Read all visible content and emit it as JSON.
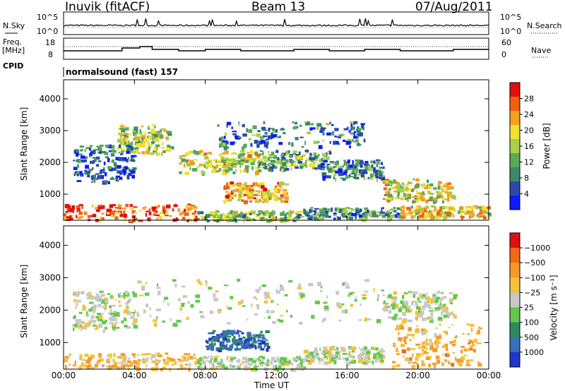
{
  "header": {
    "station": "Inuvik (fitACF)",
    "beam": "Beam 13",
    "date": "07/Aug/2011"
  },
  "strip": {
    "nsky_label": "N.Sky",
    "nsky_ticks": [
      "10^5",
      "10^0"
    ],
    "nsearch_label": "N.Search",
    "nsearch_ticks": [
      "10^5",
      "10^0"
    ],
    "freq_label": "Freq.",
    "freq_unit": "[MHz]",
    "freq_ticks": [
      "18",
      "8"
    ],
    "nave_label": "Nave",
    "nave_ticks": [
      "60",
      "0"
    ],
    "cpid_label": "CPID",
    "cpid_text": "normalsound (fast) 157"
  },
  "colors": {
    "power_scale": [
      "#0b1aff",
      "#2b4aa8",
      "#3a8a6a",
      "#5aa85a",
      "#a8d04a",
      "#f0e030",
      "#f5a020",
      "#f06010",
      "#e01010"
    ],
    "velocity_scale": [
      "#2036c8",
      "#3b6fb8",
      "#2e8a5e",
      "#62c84a",
      "#c8c8c8",
      "#f5c23a",
      "#f59a2a",
      "#f06818",
      "#e01010"
    ]
  },
  "chart_data": [
    {
      "type": "heatmap",
      "panel": "power",
      "xlabel": "",
      "ylabel": "Slant Range [km]",
      "x_ticks": [
        "00:00",
        "04:00",
        "08:00",
        "12:00",
        "16:00",
        "20:00",
        "00:00"
      ],
      "y_ticks": [
        "1000",
        "2000",
        "3000",
        "4000"
      ],
      "ylim": [
        180,
        4600
      ],
      "colorbar": {
        "label": "Power [dB]",
        "ticks": [
          "4",
          "8",
          "12",
          "16",
          "20",
          "24",
          "28"
        ],
        "range": [
          0,
          32
        ]
      },
      "regions": [
        {
          "t0": 0.0,
          "t1": 7.5,
          "r0": 200,
          "r1": 700,
          "v": 27
        },
        {
          "t0": 7.5,
          "t1": 13.5,
          "r0": 200,
          "r1": 500,
          "v": 14
        },
        {
          "t0": 13.5,
          "t1": 19.0,
          "r0": 250,
          "r1": 600,
          "v": 10
        },
        {
          "t0": 19.0,
          "t1": 24.0,
          "r0": 300,
          "r1": 650,
          "v": 20
        },
        {
          "t0": 9.0,
          "t1": 12.5,
          "r0": 800,
          "r1": 1400,
          "v": 22
        },
        {
          "t0": 6.5,
          "t1": 11.0,
          "r0": 1700,
          "r1": 2400,
          "v": 18
        },
        {
          "t0": 3.0,
          "t1": 6.0,
          "r0": 2300,
          "r1": 3200,
          "v": 16
        },
        {
          "t0": 11.0,
          "t1": 15.0,
          "r0": 1800,
          "r1": 2400,
          "v": 12
        },
        {
          "t0": 14.5,
          "t1": 18.0,
          "r0": 1500,
          "r1": 2100,
          "v": 9
        },
        {
          "t0": 18.0,
          "t1": 22.0,
          "r0": 800,
          "r1": 1500,
          "v": 18
        },
        {
          "t0": 8.5,
          "t1": 17.0,
          "r0": 2500,
          "r1": 3300,
          "v": 8
        },
        {
          "t0": 0.5,
          "t1": 4.0,
          "r0": 1400,
          "r1": 2600,
          "v": 6
        }
      ]
    },
    {
      "type": "heatmap",
      "panel": "velocity",
      "xlabel": "Time UT",
      "ylabel": "Slant Range [km]",
      "x_ticks": [
        "00:00",
        "04:00",
        "08:00",
        "12:00",
        "16:00",
        "20:00",
        "00:00"
      ],
      "y_ticks": [
        "1000",
        "2000",
        "3000",
        "4000"
      ],
      "ylim": [
        180,
        4600
      ],
      "colorbar": {
        "label": "Velocity [m s⁻¹]",
        "ticks": [
          "1000",
          "500",
          "100",
          "25",
          "−25",
          "−100",
          "−500",
          "−1000"
        ],
        "range": [
          -1200,
          1200
        ]
      },
      "regions": [
        {
          "t0": 0.0,
          "t1": 7.5,
          "r0": 200,
          "r1": 700,
          "v": -300
        },
        {
          "t0": 7.5,
          "t1": 13.5,
          "r0": 200,
          "r1": 600,
          "v": 80
        },
        {
          "t0": 8.0,
          "t1": 11.5,
          "r0": 800,
          "r1": 1400,
          "v": 800
        },
        {
          "t0": 13.5,
          "t1": 18.0,
          "r0": 400,
          "r1": 900,
          "v": 60
        },
        {
          "t0": 18.5,
          "t1": 23.5,
          "r0": 300,
          "r1": 1600,
          "v": -400
        },
        {
          "t0": 4.0,
          "t1": 18.0,
          "r0": 1600,
          "r1": 3000,
          "v": 0
        },
        {
          "t0": 18.0,
          "t1": 22.0,
          "r0": 1700,
          "r1": 2600,
          "v": 5
        },
        {
          "t0": 0.5,
          "t1": 4.0,
          "r0": 1400,
          "r1": 2600,
          "v": 40
        }
      ]
    }
  ]
}
